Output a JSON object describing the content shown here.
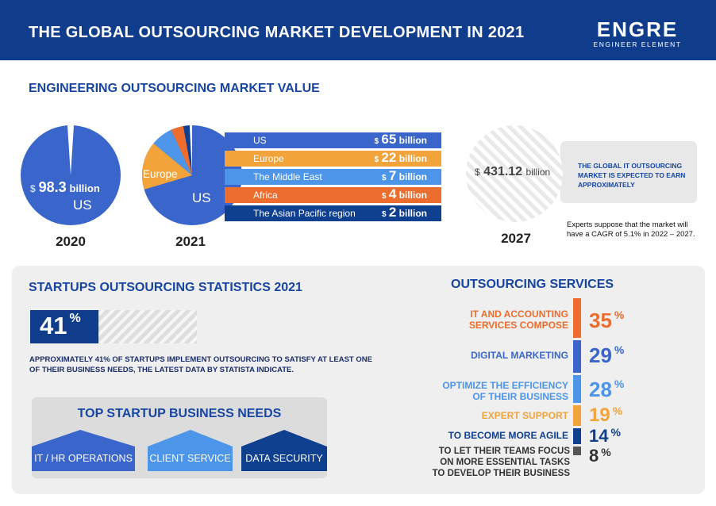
{
  "header": {
    "title": "THE GLOBAL OUTSOURCING MARKET DEVELOPMENT IN 2021",
    "logo_word": "ENGRE",
    "logo_tagline": "ENGINEER ELEMENT"
  },
  "market": {
    "title": "ENGINEERING OUTSOURCING MARKET VALUE",
    "pie2020": {
      "currency": "$",
      "value": "98.3",
      "unit": "billion",
      "region": "US",
      "year": "2020"
    },
    "pie2021": {
      "label_europe": "Europe",
      "label_us": "US",
      "year": "2021"
    },
    "bars": [
      {
        "name": "US",
        "currency": "$",
        "value": "65",
        "unit": "billion",
        "color": "#3a66cc"
      },
      {
        "name": "Europe",
        "currency": "$",
        "value": "22",
        "unit": "billion",
        "color": "#f2a43a"
      },
      {
        "name": "The Middle East",
        "currency": "$",
        "value": "7",
        "unit": "billion",
        "color": "#4d95e8"
      },
      {
        "name": "Africa",
        "currency": "$",
        "value": "4",
        "unit": "billion",
        "color": "#ec6d2d"
      },
      {
        "name": "The Asian Pacific region",
        "currency": "$",
        "value": "2",
        "unit": "billion",
        "color": "#0f3f8f"
      }
    ],
    "forecast": {
      "currency": "$",
      "value": "431.12",
      "unit": "billion",
      "year": "2027",
      "callout": "THE GLOBAL IT OUTSOURCING MARKET IS EXPECTED TO EARN APPROXIMATELY",
      "note": "Experts suppose that the market will have a CAGR of 5.1% in 2022 – 2027."
    }
  },
  "startups": {
    "title": "STARTUPS OUTSOURCING STATISTICS 2021",
    "value": "41",
    "percent_sign": "%",
    "progress_fraction": 0.41,
    "text": "APPROXIMATELY 41% OF STARTUPS IMPLEMENT OUTSOURCING TO SATISFY AT LEAST ONE OF THEIR BUSINESS NEEDS, THE LATEST DATA BY STATISTA INDICATE.",
    "needs_title": "TOP STARTUP BUSINESS NEEDS",
    "needs": [
      {
        "label": "IT / HR OPERATIONS",
        "color": "#3a66cc"
      },
      {
        "label": "CLIENT SERVICE",
        "color": "#4d95e8"
      },
      {
        "label": "DATA SECURITY",
        "color": "#0f3f8f"
      }
    ]
  },
  "services": {
    "title": "OUTSOURCING SERVICES",
    "items": [
      {
        "label": "IT AND ACCOUNTING SERVICES COMPOSE",
        "value": "35",
        "pct": "%",
        "color": "#ec6d2d"
      },
      {
        "label": "DIGITAL MARKETING",
        "value": "29",
        "pct": "%",
        "color": "#3a66cc"
      },
      {
        "label": "OPTIMIZE THE EFFICIENCY OF THEIR BUSINESS",
        "value": "28",
        "pct": "%",
        "color": "#4d95e8"
      },
      {
        "label": "EXPERT SUPPORT",
        "value": "19",
        "pct": "%",
        "color": "#f2a43a"
      },
      {
        "label": "TO BECOME MORE AGILE",
        "value": "14",
        "pct": "%",
        "color": "#0f3f8f"
      },
      {
        "label": "TO LET THEIR TEAMS FOCUS ON MORE ESSENTIAL TASKS TO DEVELOP THEIR BUSINESS",
        "value": "8",
        "pct": "%",
        "color": "#333333"
      }
    ]
  },
  "colors": {
    "navy": "#0f3d8c",
    "blue": "#3a66cc",
    "light_blue": "#4d95e8",
    "orange": "#ec6d2d",
    "amber": "#f2a43a",
    "dark_blue": "#0f3f8f"
  }
}
